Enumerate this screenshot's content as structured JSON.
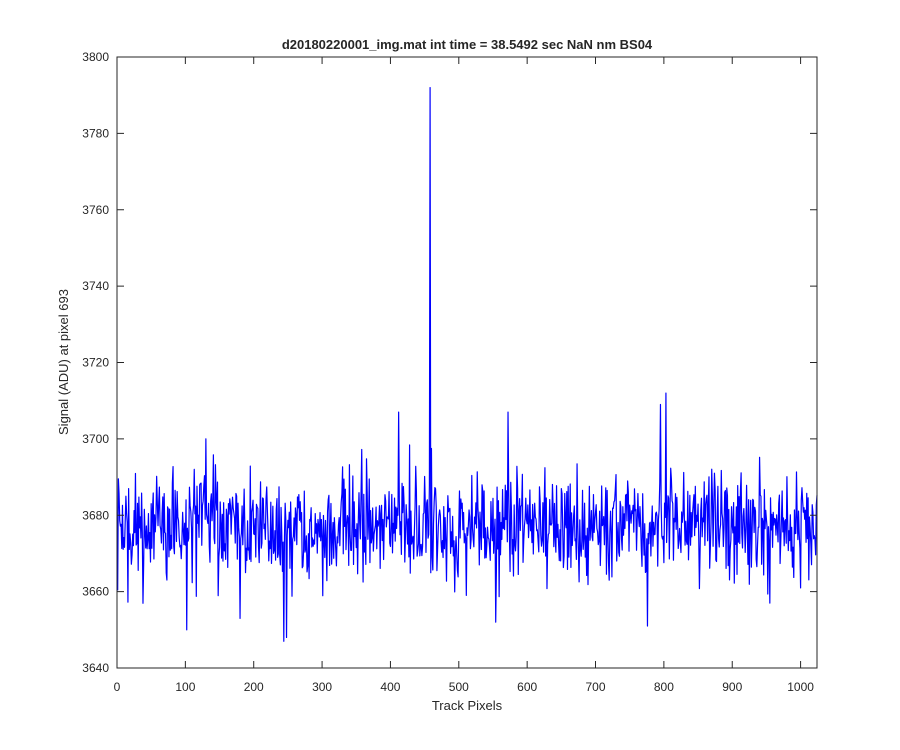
{
  "chart_data": {
    "type": "line",
    "title": "d20180220001_img.mat int time = 38.5492 sec  NaN nm BS04",
    "xlabel": "Track Pixels",
    "ylabel": "Signal (ADU) at pixel 693",
    "xlim": [
      0,
      1024
    ],
    "ylim": [
      3640,
      3800
    ],
    "xticks": [
      0,
      100,
      200,
      300,
      400,
      500,
      600,
      700,
      800,
      900,
      1000
    ],
    "yticks": [
      3640,
      3660,
      3680,
      3700,
      3720,
      3740,
      3760,
      3780,
      3800
    ],
    "xtick_labels": [
      "0",
      "100",
      "200",
      "300",
      "400",
      "500",
      "600",
      "700",
      "800",
      "900",
      "1000"
    ],
    "ytick_labels": [
      "3640",
      "3660",
      "3680",
      "3700",
      "3720",
      "3740",
      "3760",
      "3780",
      "3800"
    ],
    "grid": false,
    "line_color": "#0000ff",
    "series": [
      {
        "x_range": [
          1,
          1024
        ],
        "baseline": 3677,
        "noise_sd": 7,
        "features": [
          {
            "x": 102,
            "y": 3650
          },
          {
            "x": 130,
            "y": 3700
          },
          {
            "x": 180,
            "y": 3653
          },
          {
            "x": 244,
            "y": 3647
          },
          {
            "x": 248,
            "y": 3648
          },
          {
            "x": 412,
            "y": 3707
          },
          {
            "x": 458,
            "y": 3792
          },
          {
            "x": 554,
            "y": 3652
          },
          {
            "x": 572,
            "y": 3707
          },
          {
            "x": 776,
            "y": 3651
          },
          {
            "x": 795,
            "y": 3709
          },
          {
            "x": 803,
            "y": 3712
          },
          {
            "x": 955,
            "y": 3657
          }
        ]
      }
    ]
  }
}
